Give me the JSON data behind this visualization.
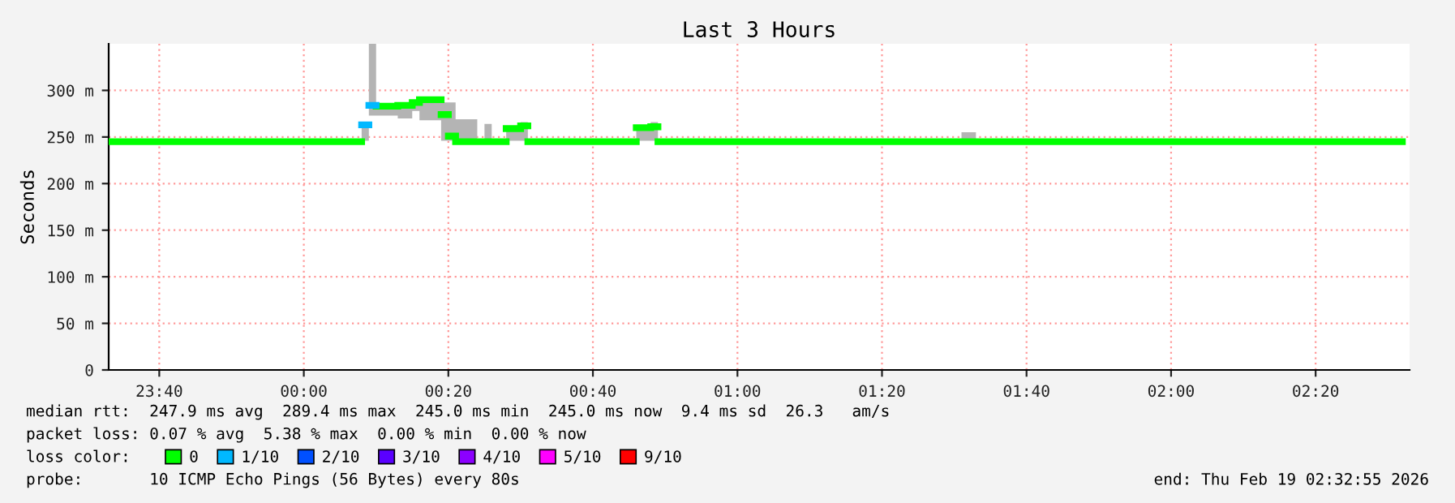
{
  "chart_data": {
    "type": "step",
    "title": "Last 3 Hours",
    "ylabel": "Seconds",
    "x": [
      "2026-02-18T23:33",
      "2026-02-19T00:08",
      "2026-02-19T00:09",
      "2026-02-19T00:10",
      "2026-02-19T00:13",
      "2026-02-19T00:15",
      "2026-02-19T00:16",
      "2026-02-19T00:19",
      "2026-02-19T00:20",
      "2026-02-19T00:21",
      "2026-02-19T00:24",
      "2026-02-19T00:25",
      "2026-02-19T00:26",
      "2026-02-19T00:28",
      "2026-02-19T00:30",
      "2026-02-19T00:31",
      "2026-02-19T00:46",
      "2026-02-19T00:48",
      "2026-02-19T00:49",
      "2026-02-19T01:31",
      "2026-02-19T01:33",
      "2026-02-19T02:32"
    ],
    "series": [
      {
        "name": "0",
        "color": "#00ff00",
        "values": [
          245,
          null,
          null,
          283,
          284,
          287,
          290,
          274,
          251,
          245,
          245,
          245,
          245,
          259,
          262,
          245,
          260,
          261,
          245,
          245,
          245,
          245
        ],
        "lower": [
          245,
          246,
          273,
          273,
          270,
          278,
          268,
          246,
          246,
          245,
          245,
          245,
          245,
          246,
          246,
          245,
          246,
          246,
          245,
          245,
          245,
          245
        ],
        "upper": [
          245,
          263,
          350,
          284,
          284,
          287,
          292,
          287,
          287,
          269,
          245,
          264,
          245,
          261,
          266,
          245,
          260,
          266,
          245,
          255,
          245,
          245
        ]
      },
      {
        "name": "1/10",
        "color": "#00b8ff",
        "x": [
          "2026-02-19T00:08",
          "2026-02-19T00:09",
          "2026-02-19T00:10"
        ],
        "values": [
          263,
          284,
          284
        ]
      },
      {
        "name": "2/10",
        "color": "#0050ff",
        "values": [
          null,
          null,
          null,
          null,
          null,
          null,
          null,
          null,
          null,
          null,
          null,
          null,
          null,
          null,
          null,
          null,
          null,
          null,
          null,
          null,
          null,
          null
        ]
      },
      {
        "name": "3/10",
        "color": "#5a00ff",
        "values": [
          null,
          null,
          null,
          null,
          null,
          null,
          null,
          null,
          null,
          null,
          null,
          null,
          null,
          null,
          null,
          null,
          null,
          null,
          null,
          null,
          null,
          null
        ]
      },
      {
        "name": "4/10",
        "color": "#8c00ff",
        "values": [
          null,
          null,
          null,
          null,
          null,
          null,
          null,
          null,
          null,
          null,
          null,
          null,
          null,
          null,
          null,
          null,
          null,
          null,
          null,
          null,
          null,
          null
        ]
      },
      {
        "name": "5/10",
        "color": "#ff00ff",
        "values": [
          null,
          null,
          null,
          null,
          null,
          null,
          null,
          null,
          null,
          null,
          null,
          null,
          null,
          null,
          null,
          null,
          null,
          null,
          null,
          null,
          null,
          null
        ]
      },
      {
        "name": "9/10",
        "color": "#ff0000",
        "values": [
          null,
          null,
          null,
          null,
          null,
          null,
          null,
          null,
          null,
          null,
          null,
          null,
          null,
          null,
          null,
          null,
          null,
          null,
          null,
          null,
          null,
          null
        ]
      }
    ],
    "xlim": [
      "2026-02-18T23:33",
      "2026-02-19T02:33"
    ],
    "xticks": [
      {
        "value": "2026-02-18T23:40",
        "label": "23:40"
      },
      {
        "value": "2026-02-19T00:00",
        "label": "00:00"
      },
      {
        "value": "2026-02-19T00:20",
        "label": "00:20"
      },
      {
        "value": "2026-02-19T00:40",
        "label": "00:40"
      },
      {
        "value": "2026-02-19T01:00",
        "label": "01:00"
      },
      {
        "value": "2026-02-19T01:20",
        "label": "01:20"
      },
      {
        "value": "2026-02-19T01:40",
        "label": "01:40"
      },
      {
        "value": "2026-02-19T02:00",
        "label": "02:00"
      },
      {
        "value": "2026-02-19T02:20",
        "label": "02:20"
      }
    ],
    "ylim": [
      0,
      350
    ],
    "yticks": [
      0,
      {
        "value": 50,
        "label": "50 m"
      },
      {
        "value": 100,
        "label": "100 m"
      },
      {
        "value": 150,
        "label": "150 m"
      },
      {
        "value": 200,
        "label": "200 m"
      },
      {
        "value": 250,
        "label": "250 m"
      },
      {
        "value": 300,
        "label": "300 m"
      }
    ],
    "grid": true,
    "legend": "bottom",
    "legend_title": "loss color:",
    "annotations": [
      "median rtt:  247.9 ms avg  289.4 ms max  245.0 ms min  245.0 ms now  9.4 ms sd  26.3   am/s",
      "packet loss: 0.07 % avg  5.38 % max  0.00 % min  0.00 % now",
      "probe:       10 ICMP Echo Pings (56 Bytes) every 80s",
      "end: Thu Feb 19 02:32:55 2026"
    ]
  }
}
